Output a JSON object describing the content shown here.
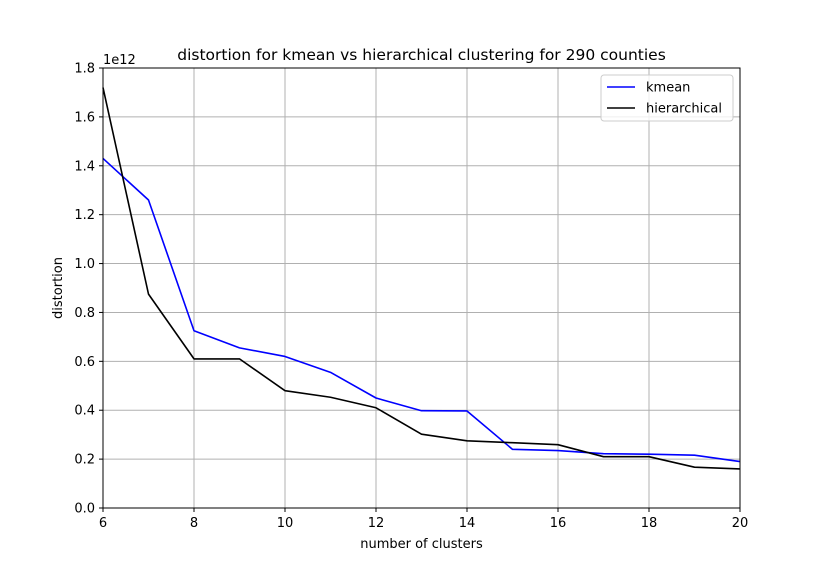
{
  "chart_data": {
    "type": "line",
    "title": "distortion for kmean vs hierarchical clustering for 290 counties",
    "xlabel": "number of clusters",
    "ylabel": "distortion",
    "y_scale_label": "1e12",
    "xlim": [
      6,
      20
    ],
    "ylim": [
      0,
      1.8
    ],
    "xticks": [
      6,
      8,
      10,
      12,
      14,
      16,
      18,
      20
    ],
    "yticks": [
      "0.0",
      "0.2",
      "0.4",
      "0.6",
      "0.8",
      "1.0",
      "1.2",
      "1.4",
      "1.6",
      "1.8"
    ],
    "grid": true,
    "legend_position": "top-right",
    "x": [
      6,
      7,
      8,
      9,
      10,
      11,
      12,
      13,
      14,
      15,
      16,
      17,
      18,
      19,
      20
    ],
    "series": [
      {
        "name": "kmean",
        "color": "#0000ff",
        "values": [
          1.43,
          1.26,
          0.725,
          0.655,
          0.62,
          0.555,
          0.45,
          0.398,
          0.397,
          0.24,
          0.235,
          0.222,
          0.22,
          0.216,
          0.19
        ]
      },
      {
        "name": "hierarchical",
        "color": "#000000",
        "values": [
          1.72,
          0.875,
          0.61,
          0.61,
          0.48,
          0.453,
          0.41,
          0.302,
          0.275,
          0.267,
          0.259,
          0.21,
          0.21,
          0.167,
          0.16
        ]
      }
    ]
  }
}
